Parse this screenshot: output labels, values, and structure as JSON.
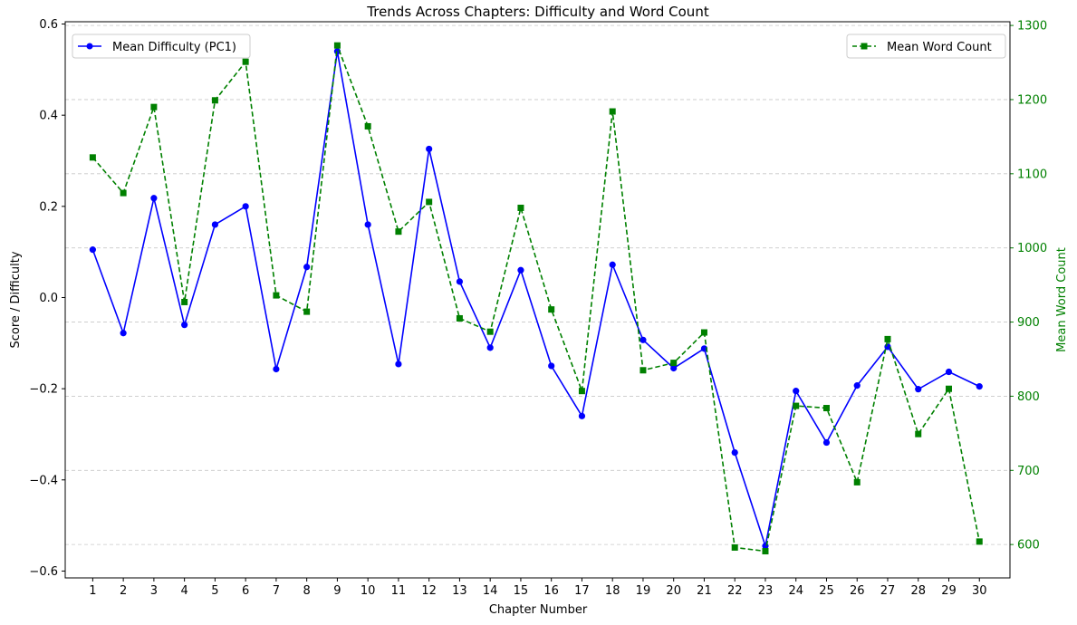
{
  "chart_data": {
    "type": "line",
    "title": "Trends Across Chapters: Difficulty and Word Count",
    "xlabel": "Chapter Number",
    "ylabel": "Score / Difficulty",
    "ylabel_right": "Mean Word Count",
    "x": [
      1,
      2,
      3,
      4,
      5,
      6,
      7,
      8,
      9,
      10,
      11,
      12,
      13,
      14,
      15,
      16,
      17,
      18,
      19,
      20,
      21,
      22,
      23,
      24,
      25,
      26,
      27,
      28,
      29,
      30
    ],
    "x_tick_labels": [
      "1",
      "2",
      "3",
      "4",
      "5",
      "6",
      "7",
      "8",
      "9",
      "10",
      "11",
      "12",
      "13",
      "14",
      "15",
      "16",
      "17",
      "18",
      "19",
      "20",
      "21",
      "22",
      "23",
      "24",
      "25",
      "26",
      "27",
      "28",
      "29",
      "30"
    ],
    "xlim": [
      0.1,
      31.0
    ],
    "ylim": [
      -0.615,
      0.605
    ],
    "y_ticks": [
      -0.6,
      -0.4,
      -0.2,
      0.0,
      0.2,
      0.4,
      0.6
    ],
    "y_tick_labels": [
      "−0.6",
      "−0.4",
      "−0.2",
      "0.0",
      "0.2",
      "0.4",
      "0.6"
    ],
    "ylim_right": [
      555,
      1305
    ],
    "y_ticks_right": [
      600,
      700,
      800,
      900,
      1000,
      1100,
      1200,
      1300
    ],
    "y_tick_labels_right": [
      "600",
      "700",
      "800",
      "900",
      "1000",
      "1100",
      "1200",
      "1300"
    ],
    "grid": "horizontal dashed, aligned to right-axis ticks",
    "series": [
      {
        "name": "Mean Difficulty (PC1)",
        "axis": "left",
        "color": "#0000ff",
        "marker": "circle",
        "line_style": "solid",
        "legend_position": "top-left",
        "values": [
          0.105,
          -0.078,
          0.218,
          -0.06,
          0.16,
          0.2,
          -0.157,
          0.067,
          0.54,
          0.16,
          -0.146,
          0.326,
          0.035,
          -0.11,
          0.06,
          -0.15,
          -0.26,
          0.072,
          -0.093,
          -0.155,
          -0.112,
          -0.34,
          -0.545,
          -0.205,
          -0.318,
          -0.193,
          -0.108,
          -0.201,
          -0.163,
          -0.195
        ]
      },
      {
        "name": "Mean Word Count",
        "axis": "right",
        "color": "#008000",
        "marker": "square",
        "line_style": "dashed",
        "legend_position": "top-right",
        "values": [
          1122,
          1074,
          1190,
          927,
          1199,
          1251,
          936,
          914,
          1273,
          1164,
          1022,
          1062,
          905,
          887,
          1054,
          917,
          807,
          1184,
          835,
          845,
          886,
          596,
          591,
          787,
          784,
          684,
          877,
          749,
          810,
          604
        ]
      }
    ]
  }
}
